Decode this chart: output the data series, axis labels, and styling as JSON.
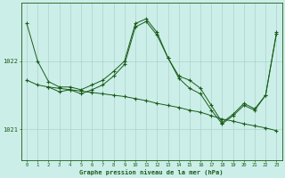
{
  "title": "Graphe pression niveau de la mer (hPa)",
  "bg_color": "#cceee8",
  "grid_color": "#aad4ce",
  "line_color": "#1a5c1a",
  "xlim": [
    -0.5,
    23.5
  ],
  "ylim": [
    1020.55,
    1022.85
  ],
  "yticks": [
    1021.0,
    1022.0
  ],
  "xticks": [
    0,
    1,
    2,
    3,
    4,
    5,
    6,
    7,
    8,
    9,
    10,
    11,
    12,
    13,
    14,
    15,
    16,
    17,
    18,
    19,
    20,
    21,
    22,
    23
  ],
  "series1_x": [
    0,
    1,
    2,
    3,
    4,
    5,
    6,
    7,
    8,
    9,
    10,
    11,
    12,
    13,
    14,
    15,
    16,
    17,
    18,
    19,
    20,
    21,
    22,
    23
  ],
  "series1_y": [
    1022.55,
    1022.0,
    1021.7,
    1021.62,
    1021.62,
    1021.58,
    1021.65,
    1021.72,
    1021.85,
    1022.0,
    1022.55,
    1022.62,
    1022.42,
    1022.05,
    1021.78,
    1021.72,
    1021.6,
    1021.35,
    1021.1,
    1021.22,
    1021.38,
    1021.3,
    1021.5,
    1022.42
  ],
  "series2_x": [
    0,
    1,
    2,
    3,
    4,
    5,
    6,
    7,
    8,
    9,
    10,
    11,
    12,
    13,
    14,
    15,
    16,
    17,
    18,
    19,
    20,
    21,
    22,
    23
  ],
  "series2_y": [
    1021.72,
    1021.65,
    1021.62,
    1021.6,
    1021.58,
    1021.56,
    1021.54,
    1021.52,
    1021.5,
    1021.48,
    1021.45,
    1021.42,
    1021.38,
    1021.35,
    1021.32,
    1021.28,
    1021.25,
    1021.2,
    1021.15,
    1021.12,
    1021.08,
    1021.05,
    1021.02,
    1020.98
  ],
  "series3_x": [
    2,
    3,
    4,
    5,
    6,
    7,
    8,
    9,
    10,
    11,
    12,
    13,
    14,
    15,
    16,
    17,
    18,
    19,
    20,
    21,
    22,
    23
  ],
  "series3_y": [
    1021.62,
    1021.55,
    1021.58,
    1021.52,
    1021.58,
    1021.65,
    1021.78,
    1021.95,
    1022.5,
    1022.58,
    1022.38,
    1022.05,
    1021.75,
    1021.6,
    1021.52,
    1021.28,
    1021.08,
    1021.2,
    1021.35,
    1021.28,
    1021.5,
    1022.4
  ]
}
